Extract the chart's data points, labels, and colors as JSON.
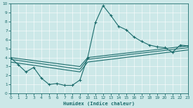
{
  "xlabel": "Humidex (Indice chaleur)",
  "xlim": [
    0,
    23
  ],
  "ylim": [
    0,
    10
  ],
  "xticks": [
    0,
    1,
    2,
    3,
    4,
    5,
    6,
    7,
    8,
    9,
    10,
    11,
    12,
    13,
    14,
    15,
    16,
    17,
    18,
    19,
    20,
    21,
    22,
    23
  ],
  "yticks": [
    0,
    1,
    2,
    3,
    4,
    5,
    6,
    7,
    8,
    9,
    10
  ],
  "bg_color": "#cce8e8",
  "grid_color": "#b0d4d4",
  "line_color": "#1a6b6b",
  "spike_line": {
    "x": [
      0,
      1,
      2,
      3,
      4,
      5,
      6,
      7,
      8,
      9,
      10,
      11,
      12,
      13,
      14,
      15,
      16,
      17,
      18,
      19,
      20,
      21,
      22,
      23
    ],
    "y": [
      4.0,
      3.2,
      2.4,
      2.9,
      1.7,
      1.0,
      1.1,
      0.9,
      0.9,
      1.5,
      4.0,
      7.9,
      9.8,
      8.7,
      7.5,
      7.1,
      6.3,
      5.8,
      5.4,
      5.2,
      5.1,
      4.6,
      5.4,
      5.3
    ]
  },
  "trend_lines": [
    {
      "x": [
        0,
        9,
        10,
        23
      ],
      "y": [
        4.0,
        3.0,
        4.0,
        5.3
      ]
    },
    {
      "x": [
        0,
        9,
        10,
        23
      ],
      "y": [
        3.8,
        2.7,
        3.8,
        5.1
      ]
    },
    {
      "x": [
        0,
        9,
        10,
        23
      ],
      "y": [
        3.5,
        2.4,
        3.5,
        4.85
      ]
    }
  ]
}
